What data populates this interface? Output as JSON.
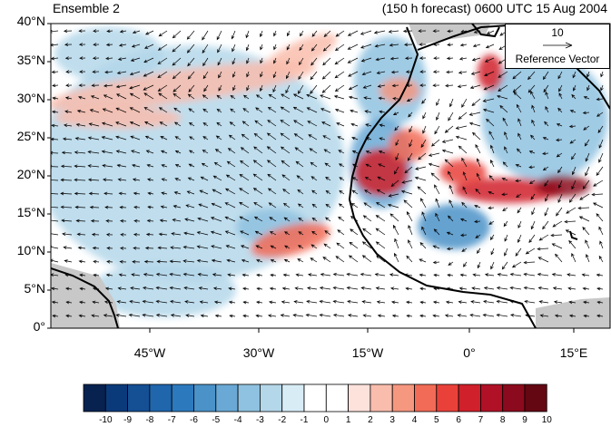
{
  "header": {
    "title_left": "Ensemble 2",
    "title_right": "(150 h forecast) 0600 UTC 15 Aug 2004"
  },
  "axes": {
    "lat_labels": [
      "40°N",
      "35°N",
      "30°N",
      "25°N",
      "20°N",
      "15°N",
      "10°N",
      "5°N",
      "0°"
    ],
    "lon_labels": [
      "45°W",
      "30°W",
      "15°W",
      "0°",
      "15°E"
    ]
  },
  "reference_vector": {
    "value": "10",
    "label": "Reference Vector"
  },
  "colorbar": {
    "labels": [
      "-10",
      "-9",
      "-8",
      "-7",
      "-6",
      "-5",
      "-4",
      "-3",
      "-2",
      "-1",
      "0",
      "1",
      "2",
      "3",
      "4",
      "5",
      "6",
      "7",
      "8",
      "9",
      "10"
    ],
    "colors": [
      "#08224f",
      "#0b3a7a",
      "#154f94",
      "#1f66ad",
      "#2c79bd",
      "#4a92c8",
      "#6aa9d5",
      "#8fc2e0",
      "#b4d7ea",
      "#d8ecf6",
      "#ffffff",
      "#ffffff",
      "#fde2dc",
      "#f9bdad",
      "#f6977f",
      "#f26b56",
      "#e9413a",
      "#d0202b",
      "#b01126",
      "#8c0a1d",
      "#640713"
    ]
  },
  "colors": {
    "land_mask": "#c8c8c8",
    "coastline": "#000000",
    "vector": "#000000"
  }
}
